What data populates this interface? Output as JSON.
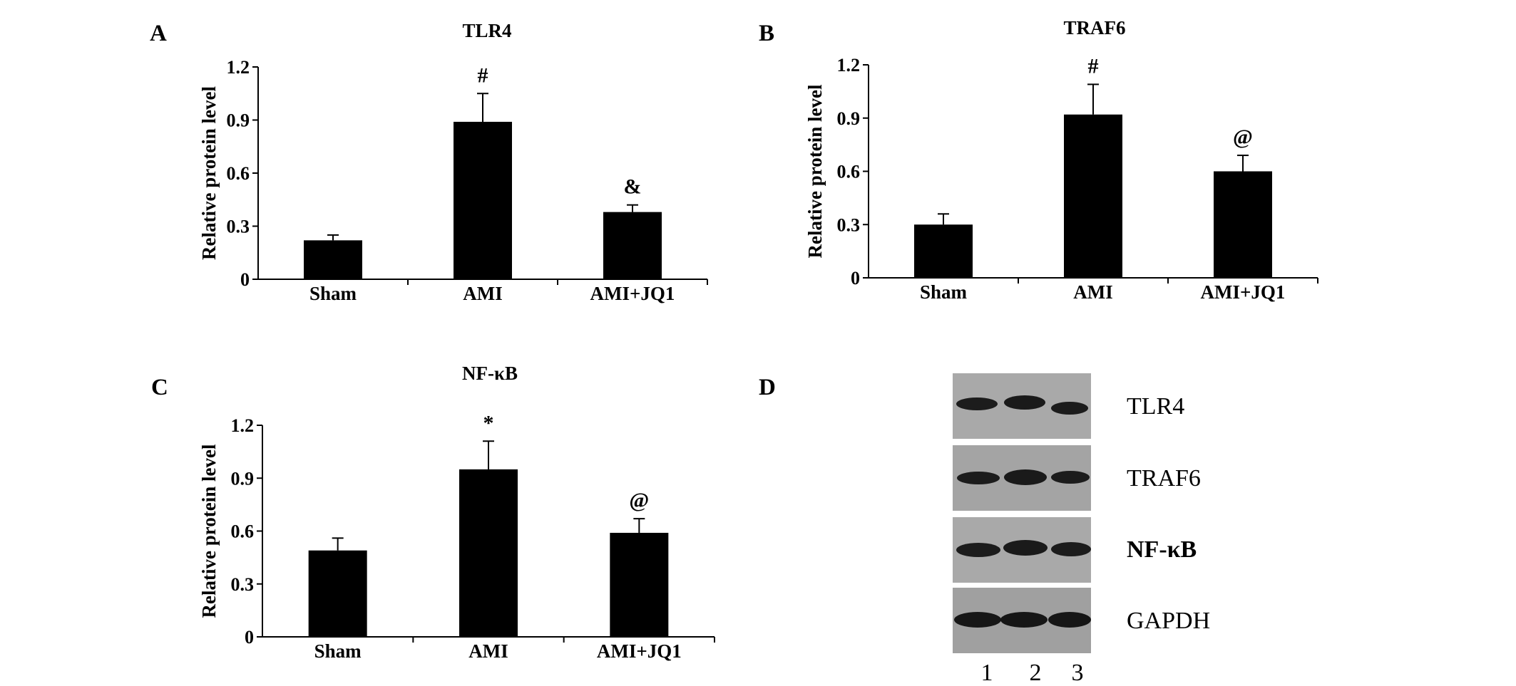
{
  "panels": {
    "A": "A",
    "B": "B",
    "C": "C",
    "D": "D"
  },
  "chart_data": [
    {
      "type": "bar",
      "title": "TLR4",
      "ylabel": "Relative protein level",
      "categories": [
        "Sham",
        "AMI",
        "AMI+JQ1"
      ],
      "values": [
        0.22,
        0.89,
        0.38
      ],
      "errors": [
        0.03,
        0.16,
        0.04
      ],
      "annotations": [
        "",
        "#",
        "&"
      ],
      "yticks": [
        "0",
        "0.3",
        "0.6",
        "0.9",
        "1.2"
      ],
      "ylim": [
        0,
        1.2
      ]
    },
    {
      "type": "bar",
      "title": "TRAF6",
      "ylabel": "Relative protein level",
      "categories": [
        "Sham",
        "AMI",
        "AMI+JQ1"
      ],
      "values": [
        0.3,
        0.92,
        0.6
      ],
      "errors": [
        0.06,
        0.17,
        0.09
      ],
      "annotations": [
        "",
        "#",
        "@"
      ],
      "yticks": [
        "0",
        "0.3",
        "0.6",
        "0.9",
        "1.2"
      ],
      "ylim": [
        0,
        1.2
      ]
    },
    {
      "type": "bar",
      "title": "NF-κB",
      "ylabel": "Relative protein level",
      "categories": [
        "Sham",
        "AMI",
        "AMI+JQ1"
      ],
      "values": [
        0.49,
        0.95,
        0.59
      ],
      "errors": [
        0.07,
        0.16,
        0.08
      ],
      "annotations": [
        "",
        "*",
        "@"
      ],
      "yticks": [
        "0",
        "0.3",
        "0.6",
        "0.9",
        "1.2"
      ],
      "ylim": [
        0,
        1.2
      ]
    }
  ],
  "blot": {
    "rows": [
      "TLR4",
      "TRAF6",
      "NF-κB",
      "GAPDH"
    ],
    "lanes": [
      "1",
      "2",
      "3"
    ]
  }
}
